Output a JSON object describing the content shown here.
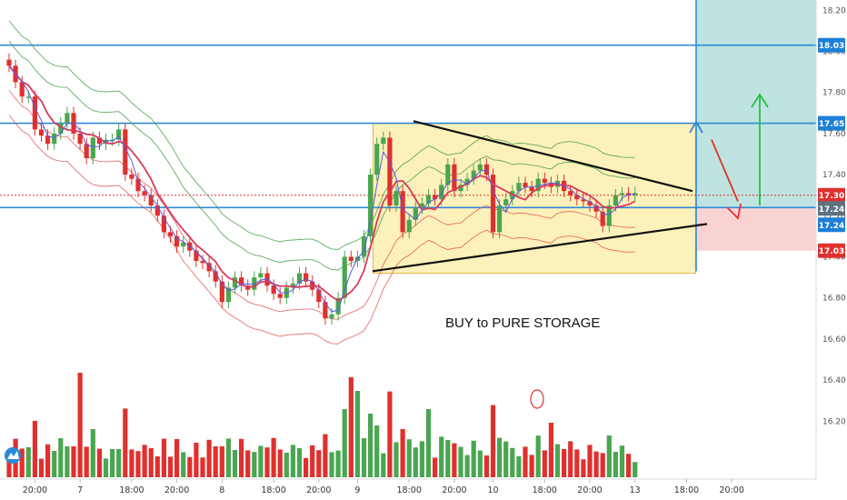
{
  "annotation": "BUY to PURE STORAGE",
  "price_tags": [
    {
      "label": "18.03",
      "value": 18.03,
      "color": "#1f7fd6"
    },
    {
      "label": "17.65",
      "value": 17.65,
      "color": "#1f7fd6"
    },
    {
      "label": "17.30",
      "value": 17.3,
      "color": "#e0302e"
    },
    {
      "label": "17.24",
      "value": 17.24,
      "color": "#5d7180"
    },
    {
      "label": "17.24",
      "value": 17.24,
      "color": "#1f7fd6"
    },
    {
      "label": "17.03",
      "value": 17.03,
      "color": "#e0302e"
    }
  ],
  "colors": {
    "up": "#4aa651",
    "down": "#e0302e",
    "level": "#2f8ad8",
    "band": "#3c9a3c",
    "band_lower": "#e05050",
    "ma_red": "#d93a5a",
    "ma_blue": "#5a5ae0",
    "target_zone": "#bfe3e0",
    "stop_zone": "#f9d3d3",
    "box": "#fdf1b8"
  },
  "chart_data": {
    "type": "candlestick",
    "y_axis": {
      "ticks": [
        16.2,
        16.4,
        16.6,
        16.8,
        17.0,
        17.2,
        17.4,
        17.6,
        17.8,
        18.0,
        18.2
      ],
      "range": [
        16.02,
        18.25
      ]
    },
    "x_ticks": [
      {
        "label": "20:00",
        "bar": 4
      },
      {
        "label": "7",
        "bar": 11
      },
      {
        "label": "18:00",
        "bar": 19
      },
      {
        "label": "20:00",
        "bar": 26
      },
      {
        "label": "8",
        "bar": 33
      },
      {
        "label": "18:00",
        "bar": 41
      },
      {
        "label": "20:00",
        "bar": 48
      },
      {
        "label": "9",
        "bar": 54
      },
      {
        "label": "18:00",
        "bar": 62
      },
      {
        "label": "20:00",
        "bar": 69
      },
      {
        "label": "10",
        "bar": 75
      },
      {
        "label": "18:00",
        "bar": 83
      },
      {
        "label": "20:00",
        "bar": 90
      },
      {
        "label": "13",
        "bar": 97
      },
      {
        "label": "18:00",
        "bar": 105
      },
      {
        "label": "20:00",
        "bar": 112
      }
    ],
    "horizontal_levels": [
      18.03,
      17.65,
      17.24
    ],
    "current_price": 17.3,
    "close": [
      17.93,
      17.85,
      17.78,
      17.78,
      17.62,
      17.59,
      17.55,
      17.6,
      17.65,
      17.7,
      17.6,
      17.55,
      17.48,
      17.58,
      17.55,
      17.57,
      17.57,
      17.62,
      17.4,
      17.38,
      17.32,
      17.3,
      17.25,
      17.2,
      17.12,
      17.1,
      17.05,
      17.07,
      17.03,
      16.98,
      16.97,
      16.93,
      16.88,
      16.78,
      16.85,
      16.9,
      16.86,
      16.84,
      16.9,
      16.92,
      16.86,
      16.82,
      16.8,
      16.85,
      16.87,
      16.92,
      16.88,
      16.84,
      16.78,
      16.7,
      16.72,
      16.8,
      17.0,
      16.98,
      17.0,
      17.1,
      17.4,
      17.55,
      17.58,
      17.25,
      17.32,
      17.12,
      17.18,
      17.24,
      17.26,
      17.3,
      17.28,
      17.35,
      17.45,
      17.32,
      17.35,
      17.38,
      17.42,
      17.45,
      17.4,
      17.12,
      17.25,
      17.28,
      17.32,
      17.36,
      17.34,
      17.32,
      17.38,
      17.36,
      17.34,
      17.37,
      17.32,
      17.3,
      17.28,
      17.27,
      17.25,
      17.22,
      17.15,
      17.25,
      17.3,
      17.31,
      17.3,
      17.31
    ],
    "volume_scale_note": "relative"
  }
}
